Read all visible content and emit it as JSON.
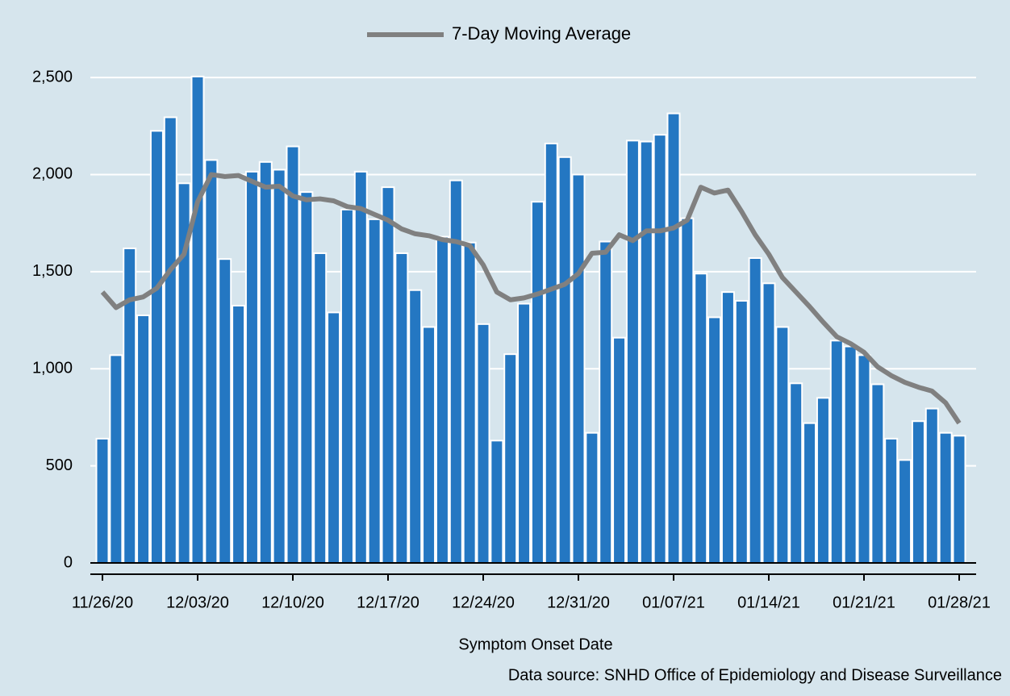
{
  "chart_data": {
    "type": "bar",
    "xlabel": "Symptom Onset Date",
    "source": "Data source: SNHD Office of Epidemiology and Disease Surveillance",
    "categories": [
      "11/26/20",
      null,
      null,
      null,
      null,
      null,
      null,
      "12/03/20",
      null,
      null,
      null,
      null,
      null,
      null,
      "12/10/20",
      null,
      null,
      null,
      null,
      null,
      null,
      "12/17/20",
      null,
      null,
      null,
      null,
      null,
      null,
      "12/24/20",
      null,
      null,
      null,
      null,
      null,
      null,
      "12/31/20",
      null,
      null,
      null,
      null,
      null,
      null,
      "01/07/21",
      null,
      null,
      null,
      null,
      null,
      null,
      "01/14/21",
      null,
      null,
      null,
      null,
      null,
      null,
      "01/21/21",
      null,
      null,
      null,
      null,
      null,
      null,
      "01/28/21"
    ],
    "series": [
      {
        "type": "bar",
        "color": "#2477c2",
        "values": [
          640,
          1070,
          1620,
          1275,
          2225,
          2295,
          1955,
          2505,
          2075,
          1565,
          1325,
          2015,
          2065,
          2025,
          2145,
          1910,
          1595,
          1290,
          1820,
          2015,
          1770,
          1935,
          1595,
          1405,
          1215,
          1680,
          1970,
          1650,
          1230,
          630,
          1075,
          1335,
          1860,
          2160,
          2090,
          2000,
          670,
          1655,
          1160,
          2175,
          2170,
          2205,
          2315,
          1775,
          1490,
          1265,
          1395,
          1350,
          1570,
          1440,
          1215,
          925,
          720,
          850,
          1145,
          1115,
          1070,
          920,
          640,
          530,
          730,
          795,
          670,
          655
        ]
      },
      {
        "type": "line",
        "name": "7-Day Moving Average",
        "color": "#808080",
        "values": [
          1395,
          1315,
          1355,
          1370,
          1415,
          1510,
          1590,
          1860,
          2000,
          1990,
          1995,
          1965,
          1935,
          1940,
          1890,
          1870,
          1875,
          1865,
          1835,
          1825,
          1795,
          1765,
          1720,
          1695,
          1685,
          1665,
          1655,
          1635,
          1535,
          1395,
          1355,
          1365,
          1385,
          1410,
          1435,
          1490,
          1595,
          1600,
          1690,
          1660,
          1710,
          1710,
          1725,
          1765,
          1935,
          1905,
          1920,
          1810,
          1690,
          1590,
          1470,
          1395,
          1320,
          1240,
          1165,
          1130,
          1085,
          1010,
          965,
          930,
          905,
          885,
          825,
          720
        ]
      }
    ],
    "ylim": [
      0,
      2600
    ],
    "yticks": [
      0,
      500,
      {
        "value": 1000,
        "label": "1,000"
      },
      {
        "value": 1500,
        "label": "1,500"
      },
      {
        "value": 2000,
        "label": "2,000"
      },
      {
        "value": 2500,
        "label": "2,500"
      }
    ],
    "grid": true,
    "legend": "top"
  }
}
